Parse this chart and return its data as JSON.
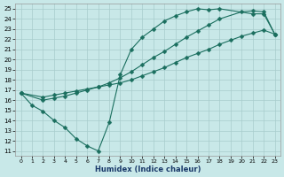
{
  "xlabel": "Humidex (Indice chaleur)",
  "bg_color": "#c8e8e8",
  "grid_color": "#a8cccc",
  "line_color": "#1a6e5e",
  "xlim": [
    -0.5,
    23.5
  ],
  "ylim": [
    10.5,
    25.5
  ],
  "xticks": [
    0,
    1,
    2,
    3,
    4,
    5,
    6,
    7,
    8,
    9,
    10,
    11,
    12,
    13,
    14,
    15,
    16,
    17,
    18,
    19,
    20,
    21,
    22,
    23
  ],
  "yticks": [
    11,
    12,
    13,
    14,
    15,
    16,
    17,
    18,
    19,
    20,
    21,
    22,
    23,
    24,
    25
  ],
  "curve1_x": [
    0,
    1,
    2,
    3,
    4,
    5,
    6,
    7,
    8,
    9,
    10,
    11,
    12,
    13,
    14,
    15,
    16,
    17,
    18,
    21,
    22,
    23
  ],
  "curve1_y": [
    16.7,
    15.5,
    14.9,
    14.0,
    13.3,
    12.2,
    11.5,
    11.0,
    13.8,
    18.5,
    21.0,
    22.2,
    23.0,
    23.8,
    24.3,
    24.7,
    25.0,
    24.9,
    25.0,
    24.5,
    24.5,
    22.5
  ],
  "curve2_x": [
    0,
    2,
    3,
    4,
    5,
    6,
    7,
    8,
    9,
    10,
    11,
    12,
    13,
    14,
    15,
    16,
    17,
    18,
    19,
    20,
    21,
    22,
    23
  ],
  "curve2_y": [
    16.7,
    16.3,
    16.5,
    16.7,
    16.9,
    17.1,
    17.3,
    17.5,
    17.7,
    18.0,
    18.4,
    18.8,
    19.2,
    19.7,
    20.2,
    20.6,
    21.0,
    21.5,
    21.9,
    22.3,
    22.6,
    22.9,
    22.5
  ],
  "curve3_x": [
    0,
    2,
    3,
    4,
    5,
    6,
    7,
    8,
    9,
    10,
    11,
    12,
    13,
    14,
    15,
    16,
    17,
    18,
    20,
    21,
    22,
    23
  ],
  "curve3_y": [
    16.7,
    16.0,
    16.2,
    16.4,
    16.7,
    17.0,
    17.3,
    17.7,
    18.2,
    18.8,
    19.5,
    20.2,
    20.8,
    21.5,
    22.2,
    22.8,
    23.4,
    24.0,
    24.7,
    24.8,
    24.7,
    22.5
  ]
}
